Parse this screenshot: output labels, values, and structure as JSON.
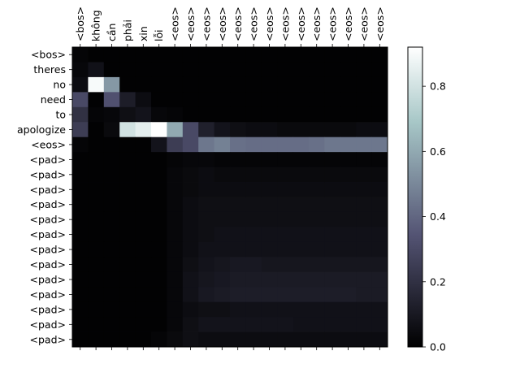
{
  "chart_data": {
    "type": "heatmap",
    "title": "",
    "xlabel": "",
    "ylabel": "",
    "x_tick_labels": [
      "<bos>",
      "không",
      "cần",
      "phải",
      "xin",
      "lỗi",
      "<eos>",
      "<eos>",
      "<eos>",
      "<eos>",
      "<eos>",
      "<eos>",
      "<eos>",
      "<eos>",
      "<eos>",
      "<eos>",
      "<eos>",
      "<eos>",
      "<eos>",
      "<eos>"
    ],
    "y_tick_labels": [
      "<bos>",
      "theres",
      "no",
      "need",
      "to",
      "apologize",
      "<eos>",
      "<pad>",
      "<pad>",
      "<pad>",
      "<pad>",
      "<pad>",
      "<pad>",
      "<pad>",
      "<pad>",
      "<pad>",
      "<pad>",
      "<pad>",
      "<pad>",
      "<pad>"
    ],
    "colormap": "bone",
    "colorbar": {
      "range": [
        0.0,
        0.92
      ],
      "ticks": [
        0.0,
        0.2,
        0.4,
        0.6,
        0.8
      ],
      "tick_labels": [
        "0.0",
        "0.2",
        "0.4",
        "0.6",
        "0.8"
      ]
    },
    "values": [
      [
        0.02,
        0.01,
        0.01,
        0.01,
        0.01,
        0.01,
        0.01,
        0.01,
        0.01,
        0.01,
        0.01,
        0.01,
        0.01,
        0.01,
        0.01,
        0.01,
        0.01,
        0.01,
        0.01,
        0.01
      ],
      [
        0.03,
        0.07,
        0.01,
        0.01,
        0.01,
        0.01,
        0.01,
        0.01,
        0.01,
        0.01,
        0.01,
        0.01,
        0.01,
        0.01,
        0.01,
        0.01,
        0.01,
        0.01,
        0.01,
        0.01
      ],
      [
        0.05,
        0.9,
        0.55,
        0.01,
        0.01,
        0.01,
        0.01,
        0.01,
        0.01,
        0.01,
        0.01,
        0.01,
        0.01,
        0.01,
        0.01,
        0.01,
        0.01,
        0.01,
        0.01,
        0.01
      ],
      [
        0.3,
        0.01,
        0.33,
        0.12,
        0.05,
        0.01,
        0.01,
        0.01,
        0.01,
        0.01,
        0.01,
        0.01,
        0.01,
        0.01,
        0.01,
        0.01,
        0.01,
        0.01,
        0.01,
        0.01
      ],
      [
        0.2,
        0.02,
        0.03,
        0.06,
        0.08,
        0.03,
        0.02,
        0.01,
        0.01,
        0.01,
        0.01,
        0.01,
        0.01,
        0.01,
        0.01,
        0.01,
        0.01,
        0.01,
        0.01,
        0.01
      ],
      [
        0.25,
        0.01,
        0.04,
        0.8,
        0.85,
        0.92,
        0.6,
        0.3,
        0.13,
        0.08,
        0.06,
        0.05,
        0.05,
        0.04,
        0.04,
        0.04,
        0.04,
        0.04,
        0.05,
        0.05
      ],
      [
        0.02,
        0.01,
        0.01,
        0.01,
        0.01,
        0.08,
        0.25,
        0.3,
        0.45,
        0.48,
        0.43,
        0.42,
        0.42,
        0.42,
        0.42,
        0.43,
        0.45,
        0.45,
        0.45,
        0.45
      ],
      [
        0.01,
        0.01,
        0.01,
        0.01,
        0.01,
        0.01,
        0.02,
        0.03,
        0.03,
        0.02,
        0.02,
        0.02,
        0.02,
        0.02,
        0.02,
        0.02,
        0.02,
        0.02,
        0.02,
        0.02
      ],
      [
        0.01,
        0.01,
        0.01,
        0.01,
        0.01,
        0.01,
        0.03,
        0.04,
        0.05,
        0.04,
        0.04,
        0.04,
        0.04,
        0.04,
        0.04,
        0.04,
        0.04,
        0.04,
        0.04,
        0.04
      ],
      [
        0.01,
        0.01,
        0.01,
        0.01,
        0.01,
        0.01,
        0.03,
        0.04,
        0.05,
        0.05,
        0.05,
        0.05,
        0.05,
        0.05,
        0.05,
        0.05,
        0.05,
        0.05,
        0.05,
        0.05
      ],
      [
        0.01,
        0.01,
        0.01,
        0.01,
        0.01,
        0.01,
        0.03,
        0.05,
        0.06,
        0.06,
        0.06,
        0.06,
        0.06,
        0.06,
        0.06,
        0.06,
        0.06,
        0.06,
        0.06,
        0.06
      ],
      [
        0.01,
        0.01,
        0.01,
        0.01,
        0.01,
        0.01,
        0.03,
        0.05,
        0.06,
        0.06,
        0.06,
        0.06,
        0.06,
        0.06,
        0.06,
        0.06,
        0.06,
        0.06,
        0.06,
        0.06
      ],
      [
        0.01,
        0.01,
        0.01,
        0.01,
        0.01,
        0.01,
        0.03,
        0.05,
        0.06,
        0.07,
        0.07,
        0.07,
        0.07,
        0.07,
        0.07,
        0.07,
        0.07,
        0.07,
        0.07,
        0.07
      ],
      [
        0.01,
        0.01,
        0.01,
        0.01,
        0.01,
        0.01,
        0.03,
        0.05,
        0.07,
        0.07,
        0.07,
        0.07,
        0.07,
        0.07,
        0.07,
        0.07,
        0.07,
        0.07,
        0.07,
        0.07
      ],
      [
        0.01,
        0.01,
        0.01,
        0.01,
        0.01,
        0.01,
        0.03,
        0.06,
        0.08,
        0.09,
        0.1,
        0.1,
        0.09,
        0.09,
        0.09,
        0.09,
        0.09,
        0.09,
        0.09,
        0.09
      ],
      [
        0.01,
        0.01,
        0.01,
        0.01,
        0.01,
        0.01,
        0.03,
        0.07,
        0.09,
        0.1,
        0.11,
        0.11,
        0.11,
        0.11,
        0.11,
        0.11,
        0.11,
        0.11,
        0.11,
        0.11
      ],
      [
        0.01,
        0.01,
        0.01,
        0.01,
        0.01,
        0.01,
        0.03,
        0.07,
        0.1,
        0.11,
        0.12,
        0.12,
        0.12,
        0.12,
        0.12,
        0.12,
        0.12,
        0.12,
        0.11,
        0.11
      ],
      [
        0.01,
        0.01,
        0.01,
        0.01,
        0.01,
        0.01,
        0.03,
        0.05,
        0.06,
        0.06,
        0.07,
        0.07,
        0.07,
        0.07,
        0.07,
        0.07,
        0.07,
        0.07,
        0.07,
        0.07
      ],
      [
        0.01,
        0.01,
        0.01,
        0.01,
        0.01,
        0.01,
        0.03,
        0.06,
        0.08,
        0.08,
        0.08,
        0.08,
        0.08,
        0.08,
        0.07,
        0.07,
        0.07,
        0.07,
        0.07,
        0.07
      ],
      [
        0.01,
        0.01,
        0.01,
        0.01,
        0.01,
        0.02,
        0.04,
        0.06,
        0.05,
        0.05,
        0.05,
        0.05,
        0.05,
        0.05,
        0.05,
        0.05,
        0.05,
        0.05,
        0.05,
        0.05
      ]
    ]
  }
}
